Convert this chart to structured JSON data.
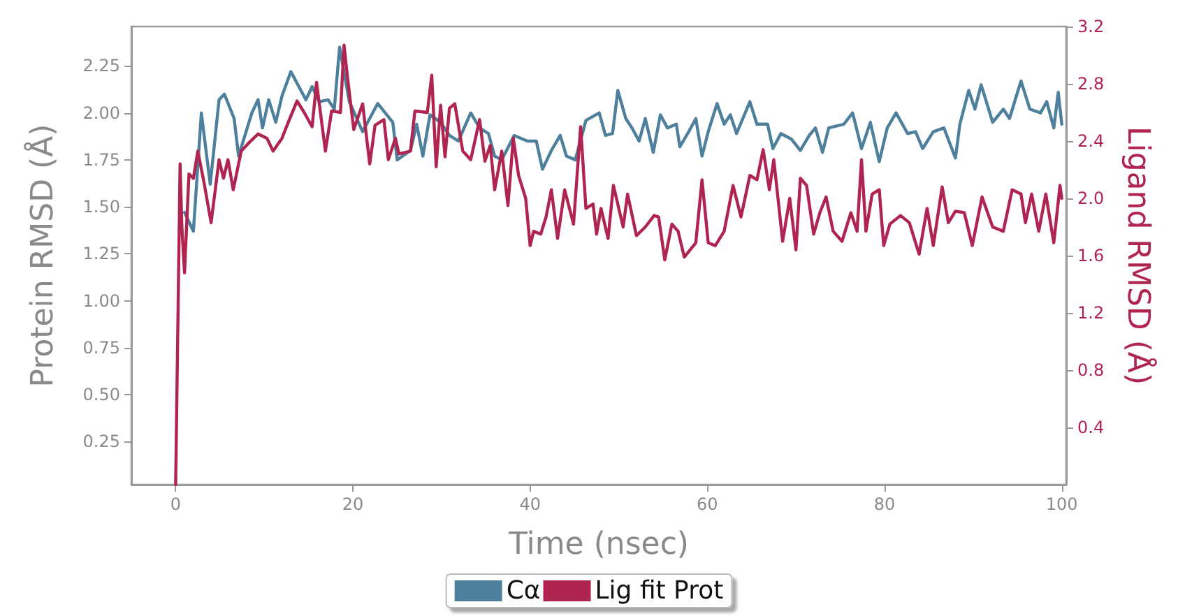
{
  "chart_data": {
    "type": "line",
    "xlabel": "Time (nsec)",
    "ylabel": "Protein RMSD (Å)",
    "y2label": "Ligand RMSD (Å)",
    "xlim": [
      -5,
      100.5
    ],
    "xticks": [
      0,
      20,
      40,
      60,
      80,
      100
    ],
    "ylim": [
      0.02,
      2.46
    ],
    "yticks": [
      0.25,
      {
        "value": 0.5,
        "label": "0.50"
      },
      0.75,
      {
        "value": 1,
        "label": "1.00"
      },
      1.25,
      {
        "value": 1.5,
        "label": "1.50"
      },
      1.75,
      {
        "value": 2,
        "label": "2.00"
      },
      2.25
    ],
    "y2lim": [
      0,
      3.2
    ],
    "y2ticks": [
      0.4,
      0.8,
      1.2,
      1.6,
      {
        "value": 2,
        "label": "2.0"
      },
      2.4,
      2.8,
      3.2
    ],
    "grid": false,
    "legend": "bottom",
    "series": [
      {
        "name": "Cα",
        "color": "#4e7f9c",
        "x": [
          1.0,
          2.0,
          2.9,
          3.9,
          4.9,
          5.5,
          6.6,
          7.1,
          8.6,
          9.3,
          9.8,
          10.5,
          11.3,
          12.0,
          13.0,
          14.7,
          15.4,
          16.2,
          17.2,
          17.9,
          18.5,
          19.6,
          21.1,
          22.8,
          24.5,
          25.0,
          26.5,
          27.2,
          27.9,
          28.7,
          29.9,
          30.9,
          31.9,
          33.3,
          34.3,
          35.3,
          36.0,
          36.8,
          38.2,
          39.7,
          40.7,
          41.4,
          42.4,
          43.4,
          44.1,
          45.1,
          46.3,
          47.8,
          48.5,
          49.3,
          49.9,
          50.5,
          50.8,
          51.5,
          52.3,
          53.0,
          53.9,
          54.7,
          55.5,
          56.5,
          56.9,
          57.9,
          58.7,
          59.4,
          60.1,
          61.1,
          61.9,
          62.6,
          63.3,
          64.8,
          65.6,
          66.8,
          67.4,
          68.3,
          69.5,
          70.5,
          71.5,
          72.2,
          73.0,
          73.7,
          75.4,
          76.4,
          77.4,
          78.4,
          79.4,
          80.3,
          81.3,
          82.6,
          83.5,
          84.3,
          85.5,
          86.7,
          88.0,
          88.5,
          89.5,
          90.2,
          90.9,
          92.2,
          93.4,
          94.1,
          95.4,
          96.4,
          97.6,
          98.3,
          99.1,
          99.6,
          100
        ],
        "values": [
          1.47,
          1.37,
          2.0,
          1.62,
          2.07,
          2.1,
          1.97,
          1.77,
          2.0,
          2.07,
          1.92,
          2.07,
          1.95,
          2.09,
          2.22,
          2.07,
          2.14,
          2.06,
          2.07,
          2.02,
          2.35,
          2.06,
          1.9,
          2.05,
          1.95,
          1.75,
          1.8,
          1.94,
          1.77,
          1.99,
          1.95,
          1.88,
          1.85,
          2.0,
          1.92,
          1.89,
          1.77,
          1.75,
          1.88,
          1.85,
          1.85,
          1.7,
          1.8,
          1.88,
          1.77,
          1.75,
          1.96,
          2.0,
          1.88,
          1.89,
          2.12,
          2.02,
          1.97,
          1.92,
          1.85,
          1.97,
          1.79,
          1.99,
          1.92,
          1.94,
          1.82,
          1.9,
          1.97,
          1.77,
          1.9,
          2.05,
          1.94,
          1.99,
          1.89,
          2.06,
          1.94,
          1.94,
          1.81,
          1.89,
          1.86,
          1.8,
          1.88,
          1.92,
          1.79,
          1.92,
          1.94,
          2.0,
          1.81,
          1.95,
          1.74,
          1.92,
          2.0,
          1.89,
          1.9,
          1.81,
          1.9,
          1.92,
          1.76,
          1.94,
          2.12,
          2.02,
          2.15,
          1.95,
          2.02,
          1.97,
          2.17,
          2.02,
          2.0,
          2.06,
          1.92,
          2.11,
          1.94
        ]
      },
      {
        "name": "Lig fit Prot",
        "color": "#b0254f",
        "axis": "y2",
        "x": [
          0,
          0.5,
          0.7,
          1.0,
          1.5,
          2.0,
          2.5,
          3.2,
          4.0,
          4.9,
          5.4,
          5.9,
          6.5,
          7.4,
          8.3,
          9.3,
          10.3,
          11.0,
          12.0,
          12.7,
          13.7,
          14.5,
          15.4,
          15.9,
          16.9,
          17.6,
          18.6,
          19.0,
          19.4,
          20.1,
          21.1,
          21.9,
          22.5,
          23.5,
          24.0,
          24.8,
          25.2,
          26.5,
          27.0,
          28.4,
          28.9,
          29.4,
          29.9,
          30.4,
          30.9,
          31.5,
          32.4,
          33.3,
          34.3,
          34.9,
          35.5,
          36.0,
          36.8,
          37.5,
          38.1,
          38.7,
          39.5,
          40.0,
          40.4,
          41.2,
          41.8,
          42.4,
          43.1,
          43.9,
          44.9,
          45.7,
          46.3,
          47.1,
          47.5,
          48.0,
          48.8,
          49.4,
          50.5,
          51.0,
          52.0,
          53.0,
          54.0,
          54.5,
          55.2,
          56.0,
          56.7,
          57.4,
          58.7,
          59.4,
          60.1,
          60.9,
          61.9,
          62.9,
          63.8,
          64.8,
          65.6,
          66.3,
          67.0,
          67.5,
          68.5,
          69.3,
          70.0,
          70.5,
          71.2,
          72.0,
          72.7,
          73.4,
          74.2,
          75.2,
          76.2,
          76.9,
          77.4,
          77.9,
          78.6,
          79.4,
          79.9,
          80.6,
          81.8,
          82.8,
          83.9,
          84.8,
          85.5,
          86.5,
          87.2,
          88.0,
          89.0,
          89.9,
          91.0,
          92.2,
          93.4,
          94.4,
          95.4,
          95.9,
          96.6,
          97.4,
          98.2,
          99.1,
          99.8,
          100
        ],
        "values": [
          0.0,
          2.24,
          1.8,
          1.48,
          2.17,
          2.14,
          2.33,
          2.11,
          1.83,
          2.27,
          2.14,
          2.27,
          2.06,
          2.33,
          2.39,
          2.45,
          2.42,
          2.33,
          2.42,
          2.53,
          2.68,
          2.6,
          2.5,
          2.81,
          2.33,
          2.61,
          2.6,
          3.07,
          2.84,
          2.48,
          2.66,
          2.24,
          2.51,
          2.55,
          2.27,
          2.42,
          2.31,
          2.33,
          2.61,
          2.6,
          2.86,
          2.22,
          2.65,
          2.29,
          2.63,
          2.66,
          2.33,
          2.27,
          2.55,
          2.26,
          2.37,
          2.06,
          2.33,
          1.95,
          2.42,
          2.16,
          2.0,
          1.67,
          1.77,
          1.75,
          1.87,
          2.06,
          1.72,
          2.06,
          1.82,
          2.5,
          1.93,
          1.96,
          1.75,
          1.93,
          1.72,
          2.09,
          1.8,
          2.03,
          1.74,
          1.8,
          1.88,
          1.87,
          1.57,
          1.82,
          1.77,
          1.59,
          1.69,
          2.13,
          1.69,
          1.67,
          1.77,
          2.09,
          1.87,
          2.16,
          2.13,
          2.34,
          2.06,
          2.27,
          1.7,
          2.0,
          1.64,
          2.14,
          2.09,
          1.75,
          1.9,
          2.01,
          1.77,
          1.7,
          1.9,
          1.77,
          2.27,
          1.77,
          2.03,
          2.06,
          1.67,
          1.82,
          1.88,
          1.83,
          1.61,
          1.93,
          1.67,
          2.08,
          1.83,
          1.91,
          1.9,
          1.67,
          2.01,
          1.8,
          1.77,
          2.06,
          2.03,
          1.83,
          2.03,
          1.77,
          2.03,
          1.69,
          2.09,
          2.0
        ]
      }
    ]
  }
}
